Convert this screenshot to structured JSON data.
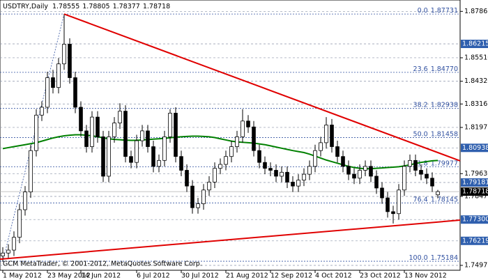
{
  "chart_data": {
    "type": "candlestick",
    "title": "USDTRY,Daily",
    "copyright": "GCM MetaTrader, © 2001-2012, MetaQuotes Software Corp.",
    "xlim": [
      -0.5,
      82
    ],
    "xticks": [
      {
        "value": 0,
        "label": "1 May 2012"
      },
      {
        "value": 8,
        "label": "23 May 2012"
      },
      {
        "value": 14,
        "label": "14 Jun 2012"
      },
      {
        "value": 24,
        "label": "6 Jul 2012"
      },
      {
        "value": 32,
        "label": "30 Jul 2012"
      },
      {
        "value": 40,
        "label": "21 Aug 2012"
      },
      {
        "value": 48,
        "label": "12 Sep 2012"
      },
      {
        "value": 56,
        "label": "4 Oct 2012"
      },
      {
        "value": 64,
        "label": "23 Oct 2012"
      },
      {
        "value": 72,
        "label": "13 Nov 2012"
      }
    ],
    "ylim": [
      1.74727,
      1.88442
    ],
    "yticks": [
      1.87865,
      {
        "value": 1.8551,
        "label": "1.85510"
      },
      {
        "value": 1.8432,
        "label": "1.84320"
      },
      1.83165,
      1.81975,
      {
        "value": 1.7963,
        "label": "1.79630"
      },
      1.78475,
      1.74975
    ],
    "grid": true,
    "up_color": "#ffffff",
    "down_color": "#000000",
    "open": [
      1.7545,
      1.756,
      1.7575,
      1.764,
      1.778,
      1.787,
      1.808,
      1.826,
      1.83,
      1.845,
      1.84,
      1.852,
      1.862,
      1.845,
      1.83,
      1.818,
      1.81,
      1.825,
      1.815,
      1.795,
      1.815,
      1.822,
      1.828,
      1.805,
      1.802,
      1.813,
      1.818,
      1.81,
      1.8,
      1.803,
      1.815,
      1.827,
      1.805,
      1.798,
      1.79,
      1.779,
      1.781,
      1.788,
      1.792,
      1.799,
      1.801,
      1.805,
      1.81,
      1.815,
      1.823,
      1.82,
      1.808,
      1.802,
      1.799,
      1.798,
      1.795,
      1.797,
      1.792,
      1.79,
      1.793,
      1.796,
      1.8,
      1.808,
      1.812,
      1.821,
      1.81,
      1.805,
      1.8,
      1.796,
      1.794,
      1.798,
      1.8,
      1.795,
      1.789,
      1.784,
      1.777,
      1.776,
      1.788,
      1.8,
      1.803,
      1.798,
      1.796,
      1.794,
      1.78555
    ],
    "high": [
      1.759,
      1.7605,
      1.767,
      1.781,
      1.79,
      1.811,
      1.829,
      1.833,
      1.848,
      1.849,
      1.855,
      1.8773,
      1.865,
      1.848,
      1.833,
      1.821,
      1.828,
      1.828,
      1.818,
      1.818,
      1.825,
      1.832,
      1.831,
      1.808,
      1.816,
      1.821,
      1.821,
      1.813,
      1.806,
      1.818,
      1.829,
      1.83,
      1.808,
      1.801,
      1.793,
      1.784,
      1.791,
      1.795,
      1.802,
      1.804,
      1.808,
      1.813,
      1.818,
      1.829,
      1.826,
      1.823,
      1.811,
      1.805,
      1.802,
      1.801,
      1.8,
      1.8,
      1.795,
      1.796,
      1.799,
      1.803,
      1.811,
      1.815,
      1.825,
      1.824,
      1.813,
      1.808,
      1.803,
      1.799,
      1.801,
      1.803,
      1.803,
      1.798,
      1.792,
      1.787,
      1.78,
      1.791,
      1.803,
      1.806,
      1.806,
      1.801,
      1.799,
      1.797,
      1.78805
    ],
    "low": [
      1.7515,
      1.753,
      1.7545,
      1.761,
      1.775,
      1.784,
      1.805,
      1.823,
      1.827,
      1.837,
      1.837,
      1.849,
      1.842,
      1.827,
      1.815,
      1.807,
      1.807,
      1.812,
      1.792,
      1.792,
      1.812,
      1.819,
      1.802,
      1.799,
      1.799,
      1.81,
      1.807,
      1.797,
      1.797,
      1.8,
      1.812,
      1.802,
      1.795,
      1.787,
      1.776,
      1.776,
      1.778,
      1.785,
      1.789,
      1.796,
      1.798,
      1.802,
      1.807,
      1.812,
      1.817,
      1.805,
      1.799,
      1.796,
      1.795,
      1.792,
      1.792,
      1.789,
      1.787,
      1.787,
      1.79,
      1.793,
      1.797,
      1.805,
      1.809,
      1.807,
      1.802,
      1.797,
      1.793,
      1.791,
      1.791,
      1.795,
      1.792,
      1.786,
      1.781,
      1.774,
      1.771,
      1.773,
      1.785,
      1.797,
      1.795,
      1.793,
      1.791,
      1.787,
      1.78377
    ],
    "close": [
      1.756,
      1.7575,
      1.764,
      1.778,
      1.787,
      1.808,
      1.826,
      1.83,
      1.845,
      1.84,
      1.852,
      1.862,
      1.845,
      1.83,
      1.818,
      1.81,
      1.825,
      1.815,
      1.795,
      1.815,
      1.822,
      1.828,
      1.805,
      1.802,
      1.813,
      1.818,
      1.81,
      1.8,
      1.803,
      1.815,
      1.827,
      1.805,
      1.798,
      1.79,
      1.779,
      1.781,
      1.788,
      1.792,
      1.799,
      1.801,
      1.805,
      1.81,
      1.815,
      1.823,
      1.82,
      1.808,
      1.802,
      1.799,
      1.798,
      1.795,
      1.797,
      1.792,
      1.79,
      1.793,
      1.796,
      1.8,
      1.808,
      1.812,
      1.821,
      1.81,
      1.805,
      1.8,
      1.796,
      1.794,
      1.798,
      1.8,
      1.795,
      1.789,
      1.784,
      1.777,
      1.776,
      1.788,
      1.8,
      1.803,
      1.798,
      1.796,
      1.794,
      1.79,
      1.78718
    ],
    "moving_average": {
      "color": "#008000",
      "values": [
        1.809,
        1.8095,
        1.81,
        1.8105,
        1.811,
        1.8115,
        1.812,
        1.8128,
        1.8136,
        1.8144,
        1.815,
        1.8155,
        1.8158,
        1.816,
        1.816,
        1.8158,
        1.8155,
        1.815,
        1.8145,
        1.814,
        1.8137,
        1.8135,
        1.8133,
        1.8132,
        1.8132,
        1.8134,
        1.8136,
        1.8138,
        1.814,
        1.8142,
        1.8145,
        1.8148,
        1.815,
        1.8152,
        1.8153,
        1.8153,
        1.8152,
        1.815,
        1.8146,
        1.814,
        1.8134,
        1.8128,
        1.8124,
        1.8122,
        1.812,
        1.8118,
        1.8114,
        1.811,
        1.8104,
        1.8098,
        1.8092,
        1.8086,
        1.808,
        1.8075,
        1.807,
        1.8062,
        1.8052,
        1.8042,
        1.8032,
        1.8024,
        1.8016,
        1.8008,
        1.8,
        1.7994,
        1.799,
        1.7988,
        1.7988,
        1.799,
        1.7992,
        1.7994,
        1.7996,
        1.7998,
        1.8002,
        1.8008,
        1.8014,
        1.802,
        1.8024,
        1.8028,
        1.803
      ]
    },
    "levels": [
      1.86215,
      1.80938,
      1.79181,
      {
        "value": 1.773,
        "label": "1.77300"
      },
      1.76219
    ],
    "level_color": "#2f5fae",
    "fibo": {
      "color": "#3050a0",
      "x": [
        0,
        11
      ],
      "levels": [
        {
          "level": "0.0",
          "price": 1.87731
        },
        {
          "level": "23.6",
          "price": {
            "value": 1.8477,
            "label": "1.84770"
          }
        },
        {
          "level": "38.2",
          "price": 1.82938
        },
        {
          "level": "50.0",
          "price": 1.81458
        },
        {
          "level": "61.8",
          "price": 1.79977
        },
        {
          "level": "76.4",
          "price": 1.78145
        },
        {
          "level": "100.0",
          "price": 1.75184
        }
      ]
    },
    "trendlines": [
      {
        "color": "#e00000",
        "x": [
          11,
          82
        ],
        "y": [
          1.8773,
          1.8028
        ]
      },
      {
        "color": "#e00000",
        "x": [
          -0.5,
          82
        ],
        "y": [
          1.7529,
          1.7727
        ]
      }
    ]
  }
}
